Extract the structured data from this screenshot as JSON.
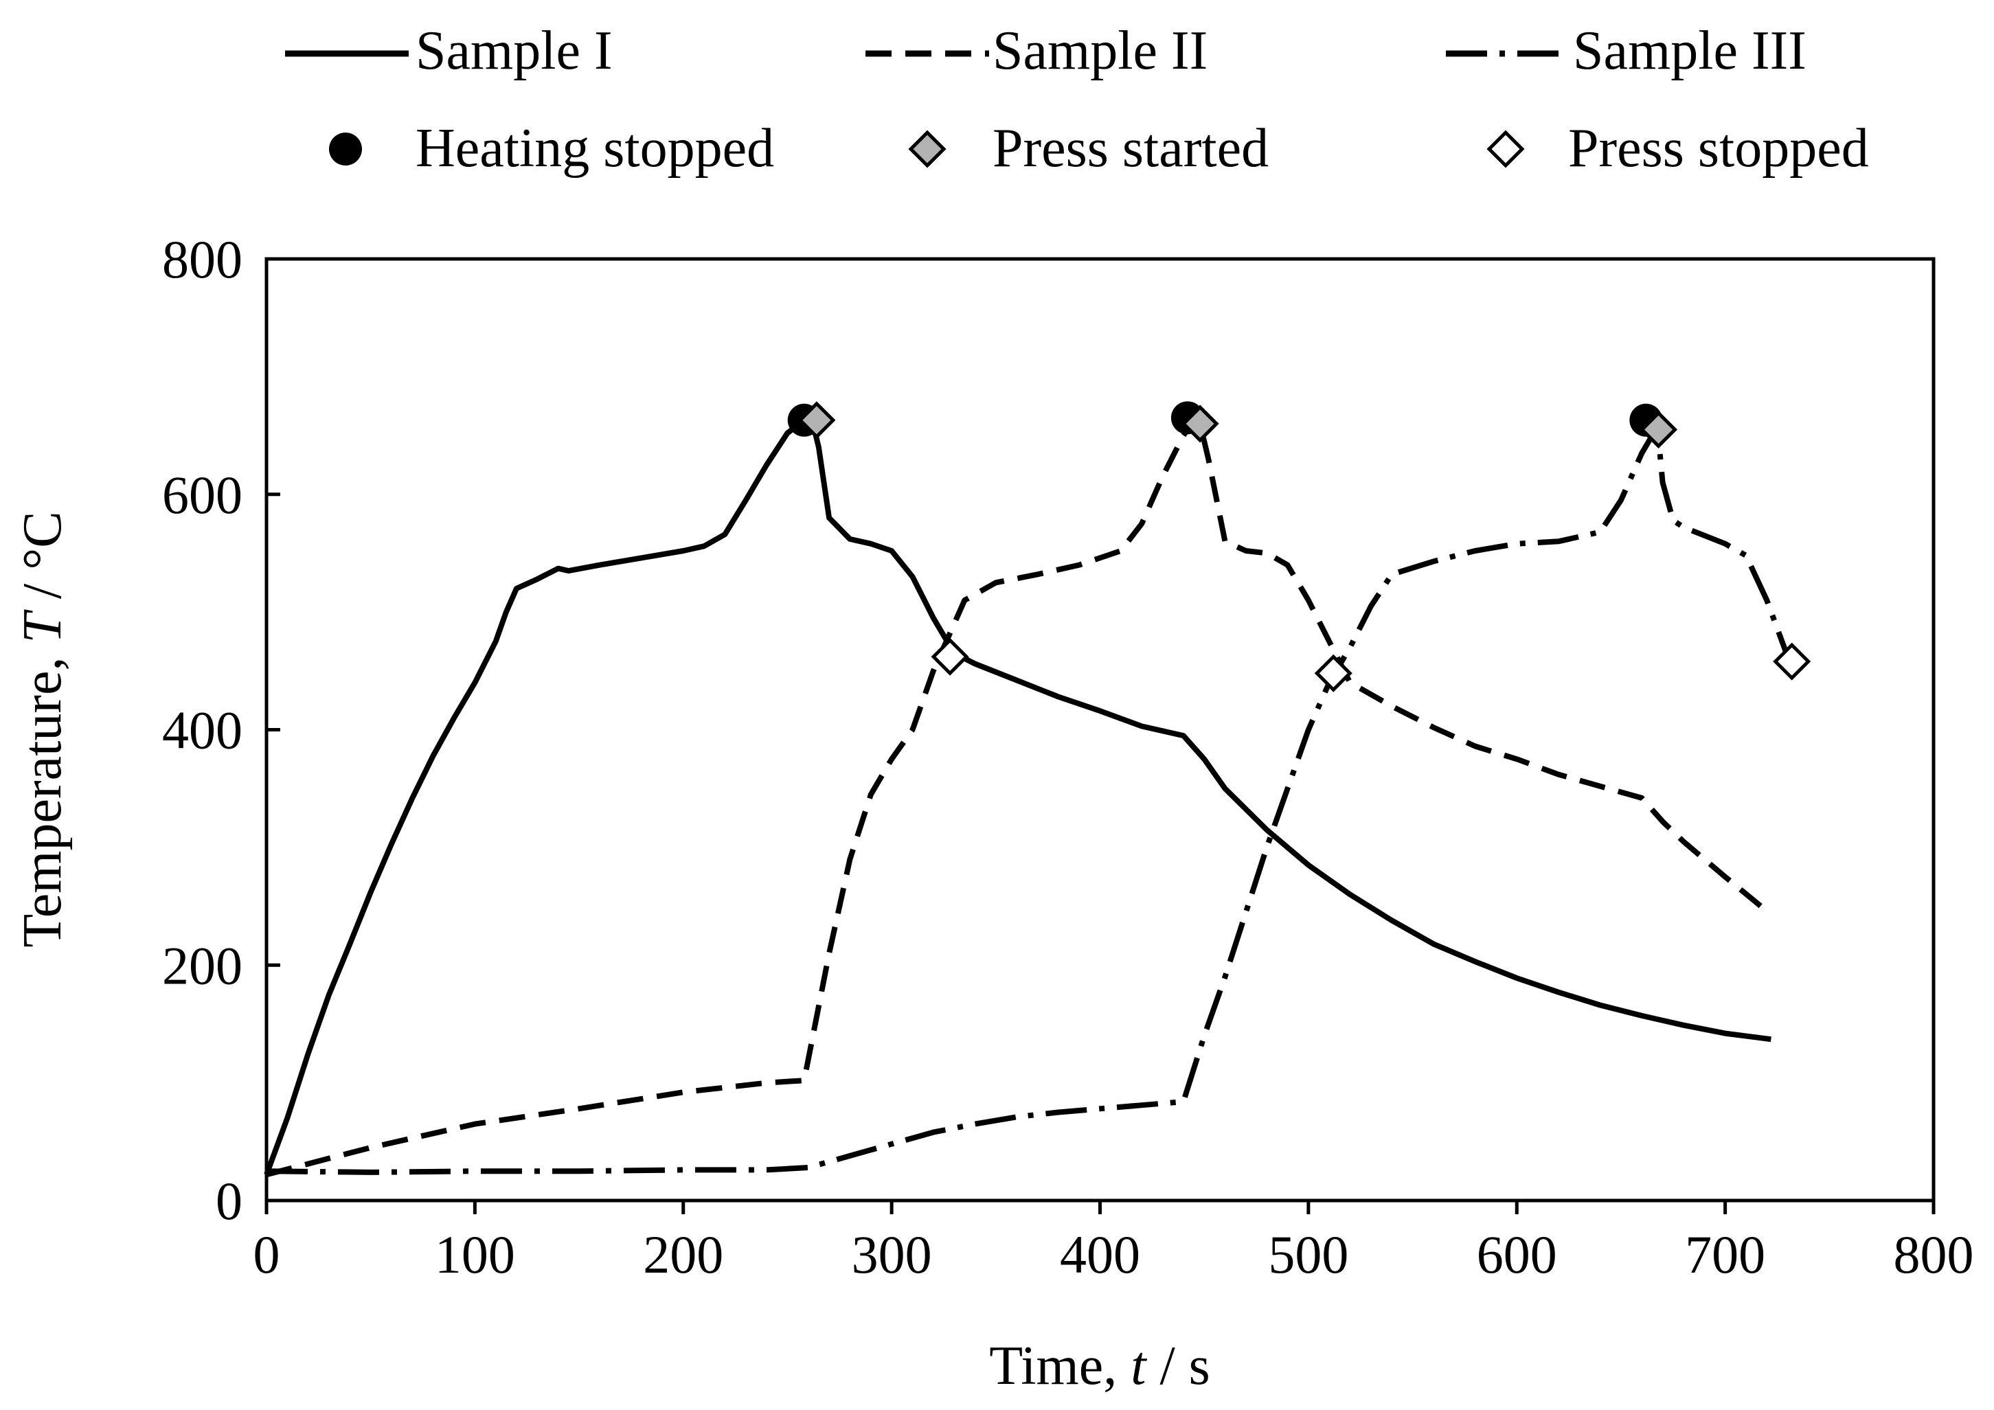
{
  "chart_data": {
    "type": "line",
    "title": "",
    "xlabel": {
      "prefix": "Time, ",
      "symbol": "t",
      "unit": " / s"
    },
    "ylabel": {
      "prefix": "Temperature, ",
      "symbol": "T",
      "unit": " / °C"
    },
    "xlim": [
      0,
      800
    ],
    "ylim": [
      0,
      800
    ],
    "xticks": [
      0,
      100,
      200,
      300,
      400,
      500,
      600,
      700,
      800
    ],
    "yticks": [
      0,
      200,
      400,
      600,
      800
    ],
    "grid": false,
    "legend_position": "top",
    "series": [
      {
        "name": "Sample I",
        "style": "solid",
        "points": [
          [
            0,
            22
          ],
          [
            10,
            70
          ],
          [
            20,
            125
          ],
          [
            30,
            175
          ],
          [
            40,
            218
          ],
          [
            50,
            262
          ],
          [
            60,
            303
          ],
          [
            70,
            342
          ],
          [
            80,
            378
          ],
          [
            90,
            410
          ],
          [
            100,
            440
          ],
          [
            110,
            475
          ],
          [
            115,
            500
          ],
          [
            120,
            520
          ],
          [
            130,
            528
          ],
          [
            140,
            537
          ],
          [
            145,
            535
          ],
          [
            160,
            540
          ],
          [
            180,
            546
          ],
          [
            200,
            552
          ],
          [
            210,
            556
          ],
          [
            220,
            566
          ],
          [
            230,
            595
          ],
          [
            240,
            625
          ],
          [
            250,
            652
          ],
          [
            258,
            663
          ],
          [
            262,
            662
          ],
          [
            265,
            640
          ],
          [
            270,
            580
          ],
          [
            280,
            562
          ],
          [
            290,
            558
          ],
          [
            300,
            552
          ],
          [
            310,
            530
          ],
          [
            320,
            495
          ],
          [
            330,
            465
          ],
          [
            340,
            456
          ],
          [
            360,
            442
          ],
          [
            380,
            428
          ],
          [
            400,
            416
          ],
          [
            420,
            403
          ],
          [
            440,
            395
          ],
          [
            450,
            375
          ],
          [
            460,
            350
          ],
          [
            480,
            315
          ],
          [
            500,
            285
          ],
          [
            520,
            260
          ],
          [
            540,
            238
          ],
          [
            560,
            218
          ],
          [
            580,
            203
          ],
          [
            600,
            189
          ],
          [
            620,
            177
          ],
          [
            640,
            166
          ],
          [
            660,
            157
          ],
          [
            680,
            149
          ],
          [
            700,
            142
          ],
          [
            722,
            137
          ]
        ]
      },
      {
        "name": "Sample II",
        "style": "dashed",
        "points": [
          [
            0,
            22
          ],
          [
            50,
            45
          ],
          [
            100,
            65
          ],
          [
            150,
            78
          ],
          [
            200,
            92
          ],
          [
            240,
            100
          ],
          [
            258,
            102
          ],
          [
            270,
            210
          ],
          [
            280,
            290
          ],
          [
            290,
            345
          ],
          [
            300,
            375
          ],
          [
            310,
            400
          ],
          [
            320,
            450
          ],
          [
            335,
            510
          ],
          [
            350,
            525
          ],
          [
            370,
            532
          ],
          [
            390,
            540
          ],
          [
            410,
            552
          ],
          [
            420,
            575
          ],
          [
            430,
            615
          ],
          [
            440,
            650
          ],
          [
            445,
            663
          ],
          [
            448,
            660
          ],
          [
            452,
            630
          ],
          [
            460,
            560
          ],
          [
            470,
            552
          ],
          [
            480,
            550
          ],
          [
            490,
            540
          ],
          [
            500,
            510
          ],
          [
            510,
            475
          ],
          [
            520,
            440
          ],
          [
            540,
            420
          ],
          [
            560,
            402
          ],
          [
            580,
            386
          ],
          [
            600,
            375
          ],
          [
            620,
            362
          ],
          [
            640,
            352
          ],
          [
            660,
            342
          ],
          [
            670,
            322
          ],
          [
            680,
            305
          ],
          [
            700,
            275
          ],
          [
            722,
            243
          ]
        ]
      },
      {
        "name": "Sample III",
        "style": "dashdot",
        "points": [
          [
            0,
            25
          ],
          [
            50,
            24
          ],
          [
            100,
            25
          ],
          [
            150,
            25
          ],
          [
            200,
            26
          ],
          [
            240,
            26
          ],
          [
            260,
            28
          ],
          [
            280,
            38
          ],
          [
            300,
            48
          ],
          [
            320,
            58
          ],
          [
            340,
            65
          ],
          [
            360,
            71
          ],
          [
            380,
            75
          ],
          [
            400,
            78
          ],
          [
            420,
            81
          ],
          [
            440,
            84
          ],
          [
            450,
            140
          ],
          [
            460,
            190
          ],
          [
            470,
            245
          ],
          [
            480,
            300
          ],
          [
            490,
            350
          ],
          [
            500,
            400
          ],
          [
            510,
            440
          ],
          [
            520,
            470
          ],
          [
            530,
            505
          ],
          [
            540,
            532
          ],
          [
            560,
            543
          ],
          [
            580,
            552
          ],
          [
            600,
            558
          ],
          [
            620,
            560
          ],
          [
            640,
            568
          ],
          [
            650,
            595
          ],
          [
            660,
            635
          ],
          [
            665,
            650
          ],
          [
            668,
            648
          ],
          [
            670,
            610
          ],
          [
            675,
            578
          ],
          [
            680,
            572
          ],
          [
            690,
            565
          ],
          [
            700,
            558
          ],
          [
            710,
            548
          ],
          [
            720,
            510
          ],
          [
            730,
            462
          ]
        ]
      }
    ],
    "markers": [
      {
        "name": "Heating stopped",
        "style": "filled-circle",
        "points": [
          [
            258,
            663
          ],
          [
            442,
            665
          ],
          [
            662,
            663
          ]
        ]
      },
      {
        "name": "Press started",
        "style": "gray-diamond",
        "points": [
          [
            264,
            663
          ],
          [
            448,
            660
          ],
          [
            668,
            655
          ]
        ]
      },
      {
        "name": "Press stopped",
        "style": "open-diamond",
        "points": [
          [
            328,
            462
          ],
          [
            512,
            448
          ],
          [
            732,
            458
          ]
        ]
      }
    ]
  }
}
